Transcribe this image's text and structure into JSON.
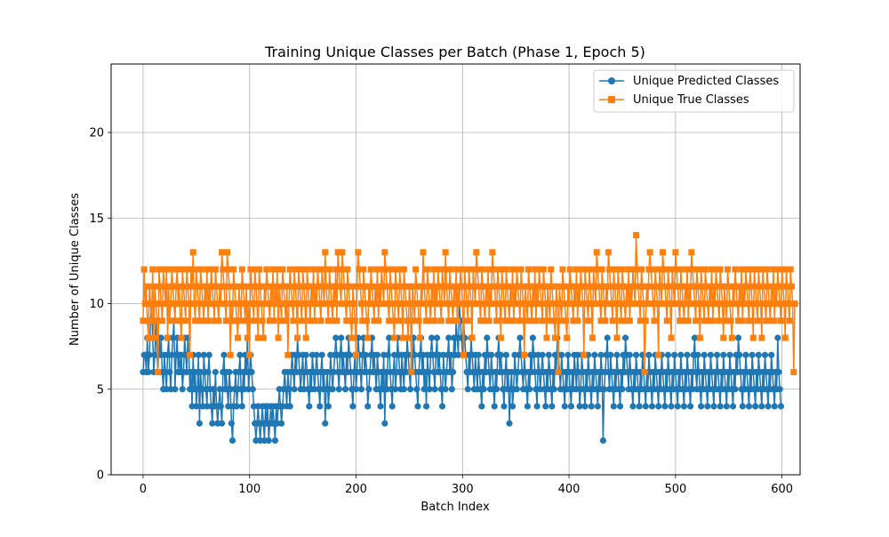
{
  "chart_data": {
    "type": "line",
    "title": "Training Unique Classes per Batch (Phase 1, Epoch 5)",
    "xlabel": "Batch Index",
    "ylabel": "Number of Unique Classes",
    "xlim": [
      -30,
      617
    ],
    "ylim": [
      0,
      24
    ],
    "x_ticks": [
      0,
      100,
      200,
      300,
      400,
      500,
      600
    ],
    "y_ticks": [
      0,
      5,
      10,
      15,
      20
    ],
    "grid": true,
    "legend_position": "upper right",
    "series": [
      {
        "name": "Unique Predicted Classes",
        "color": "#1f77b4",
        "marker": "circle",
        "x_start": 0,
        "values": [
          6,
          7,
          7,
          6,
          8,
          6,
          7,
          9,
          10,
          8,
          6,
          7,
          9,
          7,
          6,
          8,
          7,
          8,
          6,
          5,
          7,
          6,
          5,
          7,
          8,
          6,
          5,
          7,
          8,
          9,
          5,
          7,
          8,
          6,
          7,
          6,
          7,
          5,
          6,
          8,
          7,
          6,
          8,
          7,
          5,
          6,
          4,
          7,
          5,
          6,
          4,
          5,
          7,
          3,
          6,
          5,
          4,
          7,
          6,
          5,
          4,
          6,
          7,
          5,
          4,
          3,
          5,
          4,
          6,
          4,
          3,
          4,
          5,
          4,
          3,
          6,
          7,
          5,
          6,
          5,
          4,
          6,
          5,
          3,
          2,
          4,
          5,
          6,
          4,
          5,
          6,
          7,
          5,
          4,
          6,
          5,
          7,
          6,
          8,
          5,
          6,
          7,
          6,
          5,
          4,
          3,
          2,
          3,
          4,
          3,
          2,
          3,
          4,
          3,
          2,
          4,
          3,
          4,
          2,
          3,
          4,
          3,
          4,
          3,
          2,
          4,
          3,
          4,
          5,
          4,
          3,
          4,
          5,
          6,
          5,
          4,
          6,
          5,
          4,
          6,
          7,
          6,
          5,
          7,
          6,
          8,
          7,
          6,
          5,
          6,
          7,
          5,
          6,
          7,
          6,
          5,
          4,
          6,
          5,
          7,
          6,
          5,
          6,
          7,
          6,
          5,
          4,
          6,
          7,
          5,
          6,
          3,
          5,
          6,
          4,
          5,
          7,
          6,
          5,
          6,
          7,
          8,
          7,
          6,
          5,
          7,
          8,
          6,
          7,
          6,
          5,
          7,
          6,
          8,
          7,
          6,
          5,
          4,
          6,
          7,
          5,
          6,
          8,
          7,
          6,
          5,
          7,
          8,
          6,
          7,
          6,
          4,
          5,
          6,
          7,
          8,
          6,
          7,
          6,
          5,
          7,
          6,
          5,
          4,
          6,
          5,
          7,
          3,
          6,
          5,
          7,
          8,
          6,
          5,
          4,
          6,
          7,
          5,
          6,
          8,
          7,
          6,
          5,
          7,
          6,
          5,
          7,
          6,
          8,
          7,
          6,
          5,
          7,
          6,
          8,
          7,
          6,
          5,
          4,
          6,
          7,
          8,
          6,
          7,
          5,
          6,
          4,
          7,
          6,
          5,
          7,
          8,
          7,
          6,
          5,
          7,
          8,
          6,
          7,
          6,
          5,
          4,
          7,
          6,
          5,
          6,
          7,
          8,
          6,
          7,
          5,
          6,
          8,
          7,
          9,
          8,
          7,
          10,
          9,
          8,
          7,
          9,
          8,
          7,
          6,
          5,
          7,
          6,
          8,
          7,
          6,
          5,
          7,
          6,
          5,
          7,
          6,
          5,
          4,
          6,
          5,
          7,
          6,
          8,
          7,
          6,
          5,
          7,
          6,
          5,
          4,
          6,
          5,
          7,
          8,
          6,
          7,
          6,
          5,
          4,
          6,
          7,
          5,
          6,
          3,
          5,
          6,
          4,
          5,
          7,
          6,
          5,
          6,
          7,
          8,
          7,
          6,
          5,
          7,
          6,
          5,
          4,
          6,
          5,
          7,
          6,
          8,
          7,
          6,
          5,
          4,
          7,
          6,
          5,
          6,
          7,
          6,
          5,
          4,
          6,
          5,
          7,
          6,
          5,
          4,
          6,
          5,
          7,
          6,
          8,
          7,
          6,
          5,
          7,
          6,
          5,
          4,
          6,
          5,
          7,
          6,
          5,
          4,
          6,
          5,
          7,
          6,
          5,
          7,
          6,
          4,
          5,
          7,
          6,
          5,
          4,
          6,
          5,
          7,
          6,
          5,
          4,
          6,
          5,
          7,
          6,
          5,
          4,
          6,
          5,
          7,
          6,
          2,
          5,
          6,
          7,
          8,
          6,
          5,
          7,
          6,
          5,
          4,
          6,
          5,
          7,
          6,
          5,
          4,
          6,
          5,
          7,
          6,
          8,
          7,
          6,
          5,
          7,
          6,
          5,
          4,
          6,
          5,
          7,
          6,
          5,
          4,
          6,
          5,
          7,
          6,
          5,
          4,
          6,
          5,
          7,
          6,
          5,
          4,
          6,
          5,
          7,
          6,
          5,
          4,
          6,
          5,
          7,
          6,
          5,
          4,
          6,
          5,
          7,
          6,
          5,
          4,
          6,
          5,
          7,
          6,
          5,
          4,
          6,
          5,
          7,
          6,
          5,
          4,
          6,
          5,
          7,
          6,
          5,
          4,
          6,
          5,
          7,
          8,
          6,
          5,
          7,
          6,
          5,
          4,
          6,
          5,
          7,
          6,
          5,
          4,
          6,
          5,
          7,
          6,
          5,
          4,
          6,
          5,
          7,
          6,
          5,
          4,
          6,
          5,
          7,
          6,
          5,
          4,
          6,
          5,
          7,
          6,
          5,
          4,
          6,
          5,
          7,
          6,
          8,
          7,
          6,
          5,
          4,
          6,
          5,
          7,
          6,
          5,
          4,
          6,
          5,
          7,
          6,
          5,
          4,
          6,
          5,
          7,
          6,
          5,
          4,
          6,
          5,
          7,
          6,
          5,
          4,
          6,
          5,
          7,
          6,
          5,
          4,
          6,
          5,
          8,
          6,
          5,
          4
        ]
      },
      {
        "name": "Unique True Classes",
        "color": "#ff7f0e",
        "marker": "square",
        "x_start": 0,
        "values": [
          9,
          12,
          10,
          11,
          9,
          8,
          11,
          10,
          9,
          12,
          8,
          11,
          10,
          9,
          6,
          12,
          11,
          10,
          9,
          12,
          11,
          10,
          12,
          8,
          11,
          9,
          10,
          12,
          11,
          10,
          9,
          11,
          12,
          10,
          11,
          9,
          8,
          12,
          11,
          10,
          9,
          12,
          11,
          10,
          7,
          12,
          11,
          13,
          10,
          9,
          12,
          11,
          10,
          9,
          12,
          11,
          10,
          9,
          11,
          10,
          12,
          9,
          11,
          10,
          12,
          11,
          10,
          9,
          12,
          11,
          10,
          9,
          11,
          10,
          13,
          12,
          11,
          10,
          9,
          13,
          12,
          11,
          7,
          10,
          9,
          12,
          11,
          10,
          9,
          8,
          11,
          10,
          9,
          12,
          11,
          10,
          9,
          11,
          8,
          10,
          7,
          12,
          11,
          10,
          9,
          12,
          11,
          10,
          8,
          12,
          11,
          10,
          9,
          8,
          11,
          10,
          12,
          11,
          10,
          9,
          11,
          10,
          12,
          9,
          11,
          10,
          12,
          8,
          11,
          10,
          9,
          12,
          11,
          10,
          9,
          11,
          7,
          10,
          12,
          11,
          10,
          9,
          12,
          11,
          10,
          8,
          12,
          11,
          10,
          9,
          12,
          11,
          10,
          8,
          12,
          11,
          10,
          9,
          11,
          10,
          12,
          9,
          11,
          10,
          12,
          11,
          10,
          9,
          12,
          11,
          10,
          13,
          11,
          10,
          9,
          12,
          11,
          10,
          9,
          11,
          10,
          12,
          9,
          13,
          12,
          11,
          10,
          13,
          12,
          11,
          10,
          9,
          12,
          11,
          10,
          9,
          8,
          11,
          10,
          9,
          7,
          11,
          13,
          12,
          11,
          10,
          9,
          12,
          11,
          10,
          9,
          8,
          11,
          10,
          12,
          11,
          10,
          9,
          11,
          10,
          12,
          9,
          11,
          10,
          12,
          11,
          10,
          13,
          12,
          11,
          10,
          9,
          12,
          11,
          10,
          9,
          8,
          12,
          11,
          10,
          9,
          12,
          11,
          10,
          8,
          12,
          11,
          10,
          9,
          8,
          11,
          10,
          6,
          11,
          10,
          9,
          12,
          11,
          10,
          9,
          8,
          11,
          10,
          13,
          11,
          10,
          9,
          12,
          11,
          10,
          9,
          11,
          10,
          12,
          9,
          11,
          10,
          12,
          11,
          10,
          9,
          12,
          11,
          10,
          13,
          11,
          10,
          9,
          12,
          11,
          10,
          9,
          11,
          10,
          12,
          9,
          11,
          10,
          12,
          11,
          10,
          7,
          12,
          11,
          10,
          9,
          12,
          11,
          10,
          8,
          12,
          11,
          10,
          13,
          12,
          11,
          10,
          9,
          12,
          11,
          10,
          9,
          11,
          10,
          12,
          9,
          11,
          10,
          13,
          12,
          11,
          10,
          9,
          12,
          11,
          10,
          8,
          12,
          11,
          10,
          9,
          12,
          11,
          10,
          9,
          11,
          10,
          12,
          9,
          11,
          10,
          12,
          11,
          10,
          9,
          12,
          11,
          10,
          7,
          11,
          10,
          9,
          12,
          11,
          10,
          9,
          11,
          10,
          12,
          9,
          11,
          10,
          12,
          11,
          10,
          9,
          12,
          11,
          10,
          8,
          11,
          10,
          9,
          12,
          11,
          10,
          9,
          8,
          11,
          10,
          6,
          11,
          10,
          9,
          12,
          11,
          10,
          9,
          8,
          11,
          10,
          12,
          11,
          10,
          9,
          11,
          10,
          12,
          9,
          11,
          10,
          12,
          11,
          10,
          7,
          12,
          11,
          10,
          9,
          12,
          11,
          10,
          8,
          12,
          11,
          10,
          13,
          12,
          11,
          10,
          9,
          12,
          11,
          10,
          9,
          11,
          10,
          13,
          12,
          11,
          10,
          9,
          12,
          11,
          10,
          8,
          12,
          11,
          10,
          9,
          12,
          11,
          10,
          9,
          11,
          10,
          12,
          9,
          11,
          10,
          12,
          11,
          10,
          14,
          12,
          11,
          10,
          9,
          12,
          11,
          10,
          6,
          9,
          11,
          10,
          12,
          13,
          12,
          11,
          10,
          9,
          12,
          11,
          10,
          7,
          12,
          11,
          10,
          13,
          12,
          11,
          10,
          9,
          12,
          11,
          10,
          8,
          12,
          11,
          10,
          13,
          12,
          11,
          10,
          9,
          12,
          11,
          10,
          9,
          11,
          10,
          12,
          9,
          11,
          10,
          13,
          12,
          11,
          10,
          9,
          12,
          11,
          10,
          8,
          12,
          11,
          10,
          9,
          12,
          11,
          10,
          9,
          11,
          10,
          12,
          9,
          11,
          10,
          12,
          11,
          10,
          9,
          12,
          11,
          10,
          8,
          11,
          10,
          9,
          12,
          11,
          10,
          9,
          8,
          11,
          10,
          12,
          11,
          10,
          9,
          11,
          10,
          12,
          9,
          11,
          10,
          12,
          11,
          10,
          9,
          12,
          11,
          10,
          8,
          12,
          11,
          10,
          9,
          12,
          11,
          10,
          8,
          12,
          11,
          10,
          9,
          12,
          11,
          10,
          9,
          11,
          10,
          12,
          9,
          11,
          10,
          12,
          11,
          10,
          9,
          12,
          11,
          10,
          8,
          12,
          11,
          10,
          9,
          12,
          11,
          10,
          6,
          10
        ]
      }
    ]
  }
}
